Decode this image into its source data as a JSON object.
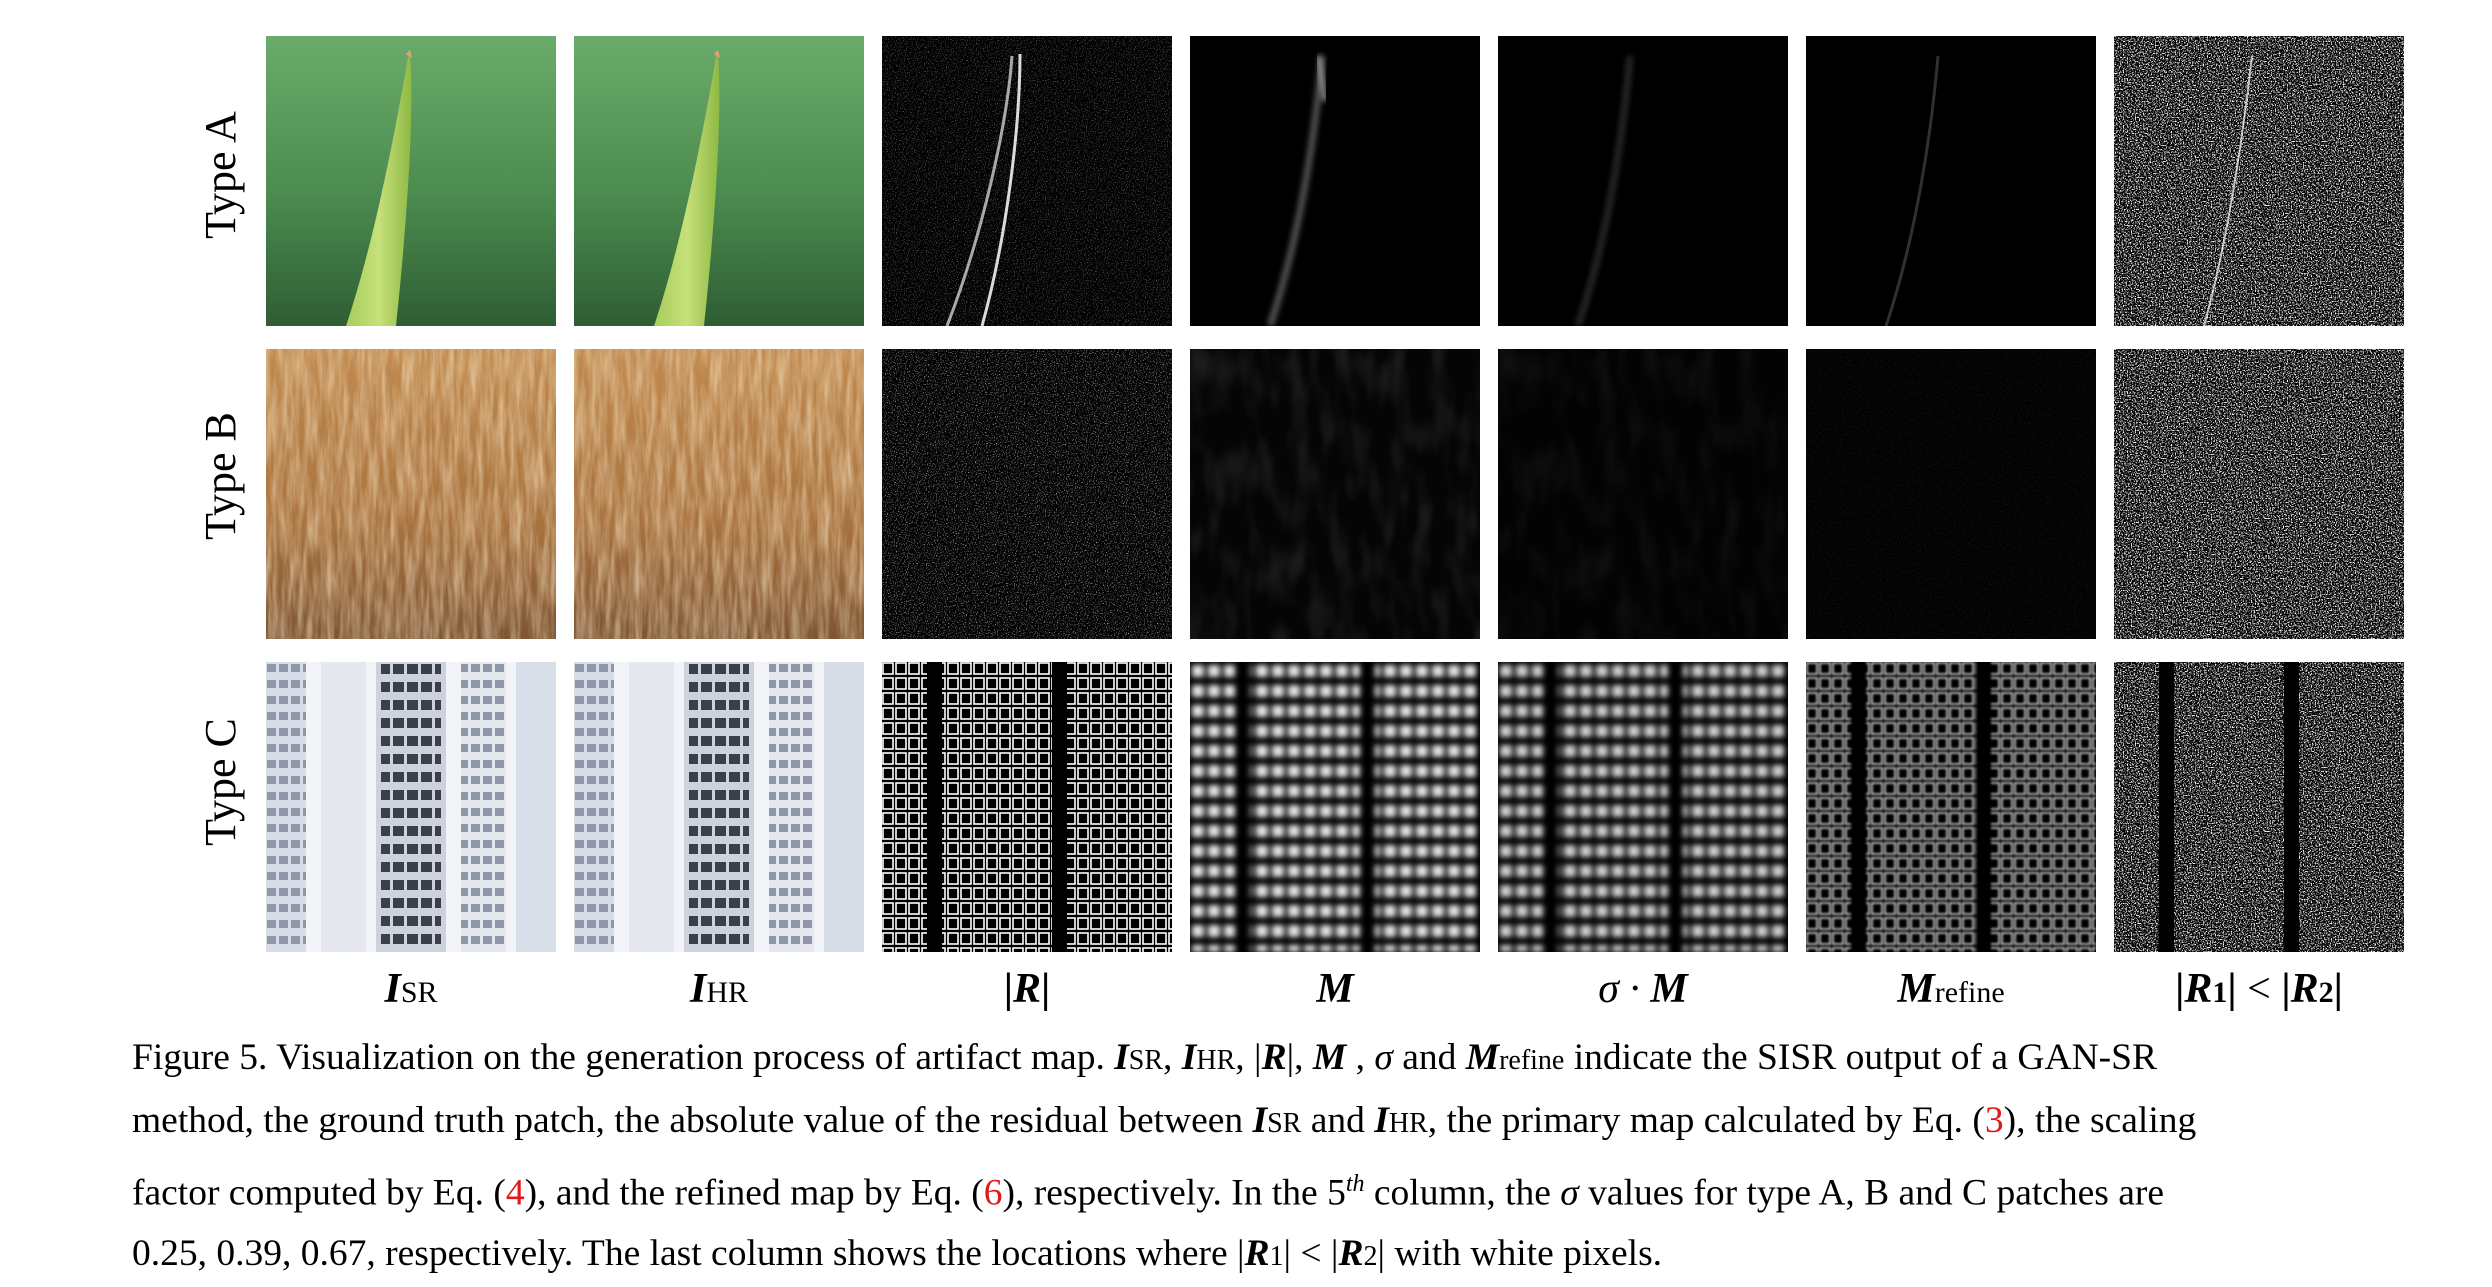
{
  "figure": {
    "rows": [
      {
        "label": "Type A"
      },
      {
        "label": "Type B"
      },
      {
        "label": "Type C"
      }
    ],
    "columns": [
      {
        "symbol": "I",
        "sub": "SR"
      },
      {
        "symbol": "I",
        "sub": "HR"
      },
      {
        "symbol": "R"
      },
      {
        "symbol": "M"
      },
      {
        "prefix": "σ · ",
        "symbol": "M"
      },
      {
        "symbol": "M",
        "sub": "refine"
      },
      {
        "symbol": "R",
        "sub": "1",
        "op": " < ",
        "symbol2": "R",
        "sub2": "2"
      }
    ]
  },
  "caption": {
    "figure_label": "Figure 5.",
    "l1_a": "Visualization on the generation process of artifact map.",
    "l1_b": "and",
    "l1_c": "indicate the SISR output of a GAN-SR",
    "l2_a": "method, the ground truth patch, the absolute value of the residual between",
    "l2_b": "and",
    "l2_c": ", the primary map calculated by Eq. (",
    "ref3": "3",
    "l2_d": "), the scaling",
    "l3_a": "factor computed by Eq. (",
    "ref4": "4",
    "l3_b": "), and the refined map by Eq. (",
    "ref6": "6",
    "l3_c": "), respectively. In the",
    "fifth": "5",
    "th": "th",
    "l3_d": "column, the",
    "l3_e": "values for type A, B and C patches are",
    "sigma_values": "0.25, 0.39, 0.67",
    "l4_a": ", respectively. The last column shows the locations where",
    "l4_b": "with white pixels."
  }
}
